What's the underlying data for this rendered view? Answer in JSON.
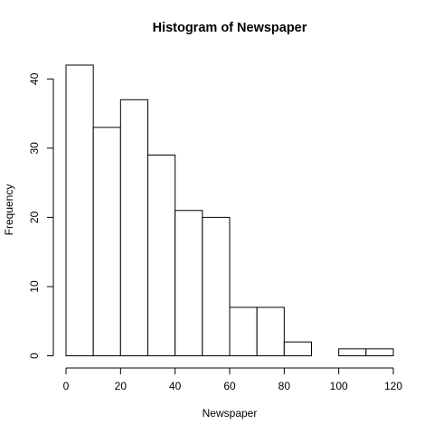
{
  "chart_data": {
    "type": "bar",
    "title": "Histogram of Newspaper",
    "xlabel": "Newspaper",
    "ylabel": "Frequency",
    "bin_edges": [
      0,
      10,
      20,
      30,
      40,
      50,
      60,
      70,
      80,
      90,
      100,
      110,
      120
    ],
    "counts": [
      42,
      33,
      37,
      29,
      21,
      20,
      7,
      7,
      2,
      0,
      1,
      1
    ],
    "xlim": [
      0,
      120
    ],
    "ylim": [
      0,
      42
    ],
    "x_ticks": [
      0,
      20,
      40,
      60,
      80,
      100,
      120
    ],
    "y_ticks": [
      0,
      10,
      20,
      30,
      40
    ],
    "grid": false,
    "legend": "none",
    "colors": {
      "bar_fill": "#ffffff",
      "bar_stroke": "#000000"
    }
  }
}
